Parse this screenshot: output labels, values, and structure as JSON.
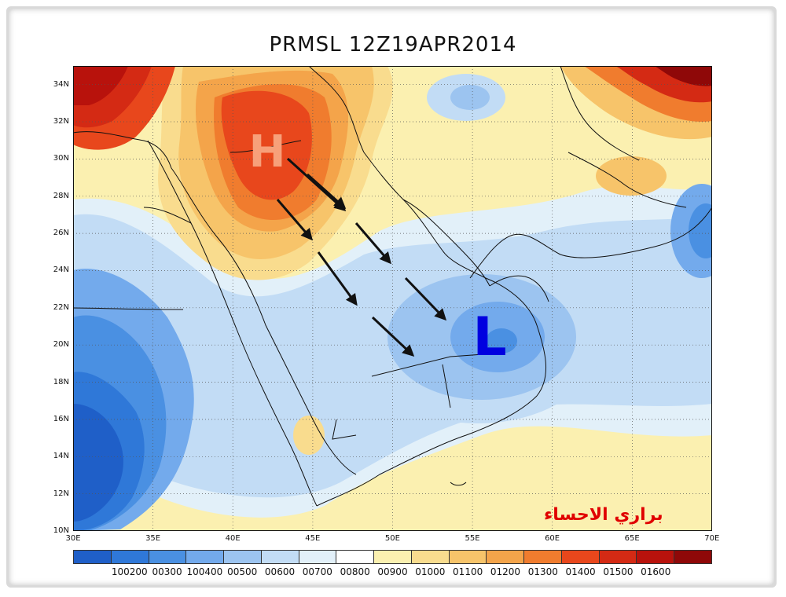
{
  "title": "PRMSL 12Z19APR2014",
  "lat_labels": [
    "34N",
    "32N",
    "30N",
    "28N",
    "26N",
    "24N",
    "22N",
    "20N",
    "18N",
    "16N",
    "14N",
    "12N",
    "10N"
  ],
  "lon_labels": [
    "30E",
    "35E",
    "40E",
    "45E",
    "50E",
    "55E",
    "60E",
    "65E",
    "70E"
  ],
  "markers": {
    "high": {
      "label": "H",
      "color": "#f7a07a"
    },
    "low": {
      "label": "L",
      "color": "#0000e0"
    }
  },
  "legend": {
    "colors": [
      "#1f5fc8",
      "#2f78d8",
      "#4a90e2",
      "#73aaec",
      "#9cc4f0",
      "#c2dcf5",
      "#e2f0f9",
      "#ffffff",
      "#fbf0b0",
      "#f9dc8e",
      "#f7c46a",
      "#f4a44a",
      "#f07c2e",
      "#e8471c",
      "#d42a14",
      "#b8120c",
      "#8f0808"
    ],
    "labels": [
      "100200",
      "00300",
      "100400",
      "00500",
      "00600",
      "00700",
      "00800",
      "00900",
      "01000",
      "01100",
      "01200",
      "01300",
      "01400",
      "01500",
      "01600"
    ]
  },
  "watermark": "براري الاحساء"
}
